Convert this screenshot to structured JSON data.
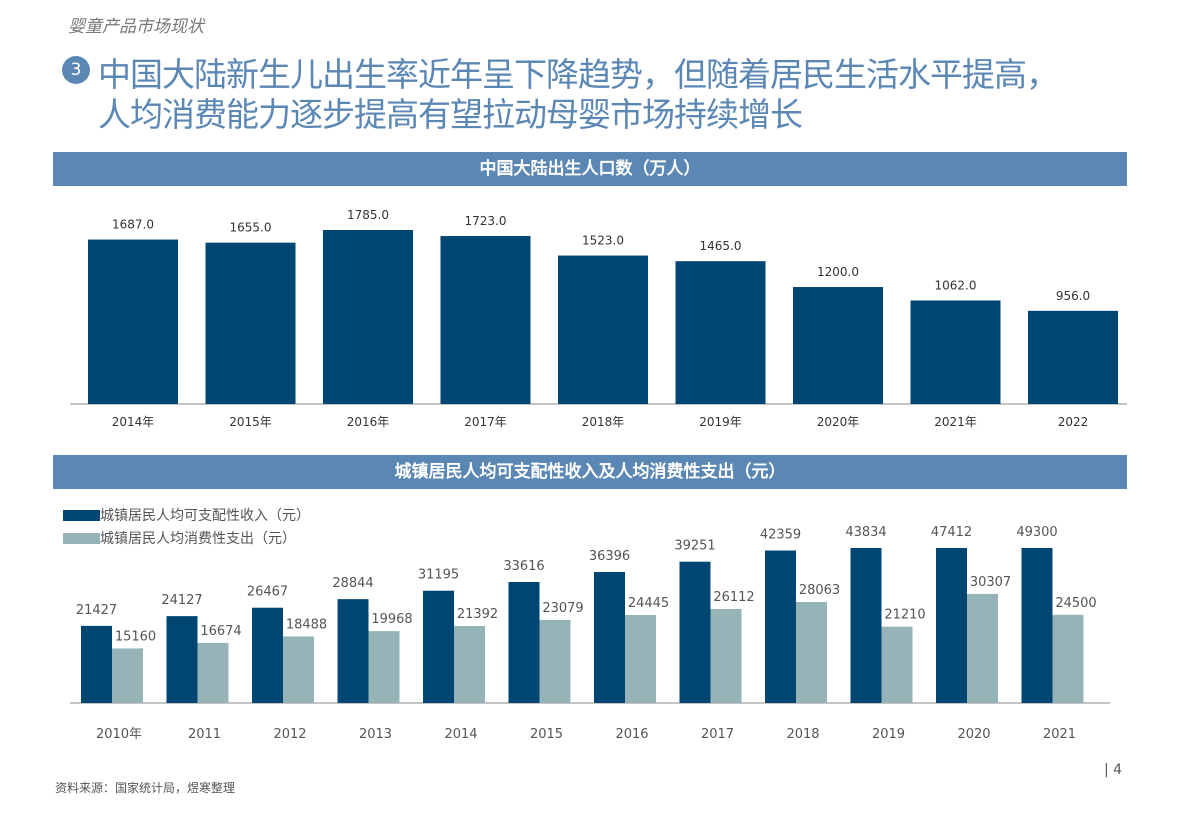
{
  "header": {
    "section": "婴童产品市场现状",
    "number": "3",
    "title_line1": "中国大陆新生儿出生率近年呈下降趋势，但随着居民生活水平提高，",
    "title_line2": "人均消费能力逐步提高有望拉动母婴市场持续增长"
  },
  "colors": {
    "dark": "#004672",
    "light": "#96b4b8",
    "band": "#5b87b5"
  },
  "chart_data": [
    {
      "type": "bar",
      "title": "中国大陆出生人口数（万人）",
      "categories": [
        "2014年",
        "2015年",
        "2016年",
        "2017年",
        "2018年",
        "2019年",
        "2020年",
        "2021年",
        "2022"
      ],
      "values": [
        1687.0,
        1655.0,
        1785.0,
        1723.0,
        1523.0,
        1465.0,
        1200.0,
        1062.0,
        956.0
      ],
      "labels": [
        "1687.0",
        "1655.0",
        "1785.0",
        "1723.0",
        "1523.0",
        "1465.0",
        "1200.0",
        "1062.0",
        "956.0"
      ],
      "ylim": [
        0,
        1900
      ],
      "grid": false
    },
    {
      "type": "bar",
      "title": "城镇居民人均可支配性收入及人均消费性支出（元）",
      "categories": [
        "2010年",
        "2011",
        "2012",
        "2013",
        "2014",
        "2015",
        "2016",
        "2017",
        "2018",
        "2019",
        "2020",
        "2021"
      ],
      "series": [
        {
          "name": "城镇居民人均可支配性收入（元）",
          "values": [
            21427,
            24127,
            26467,
            28844,
            31195,
            33616,
            36396,
            39251,
            42359,
            43834,
            47412,
            49300
          ]
        },
        {
          "name": "城镇居民人均消费性支出（元）",
          "values": [
            15160,
            16674,
            18488,
            19968,
            21392,
            23079,
            24445,
            26112,
            28063,
            21210,
            30307,
            24500
          ]
        }
      ],
      "legend": "top-left",
      "grid": false
    }
  ],
  "footer": {
    "source": "资料来源：国家统计局，煜寒整理",
    "page": "| 4"
  }
}
